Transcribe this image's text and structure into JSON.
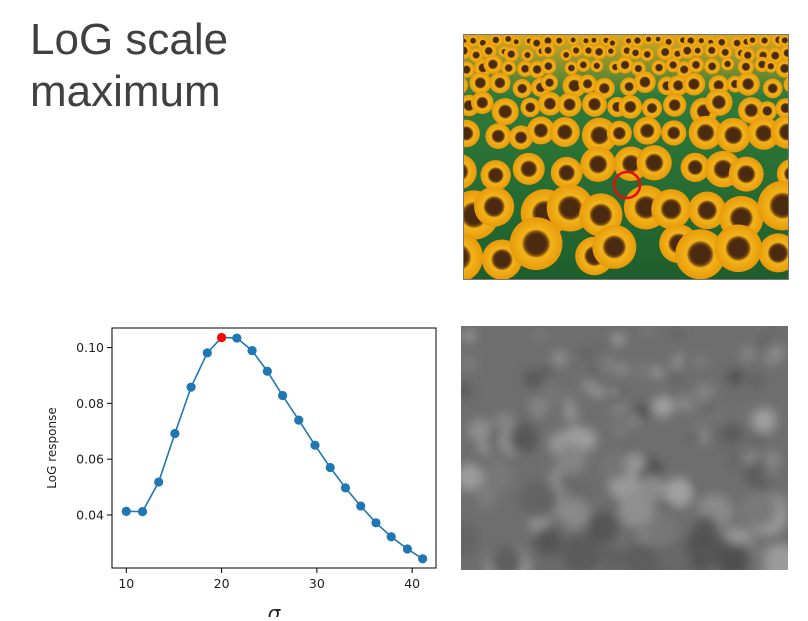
{
  "slide": {
    "title_line1": "LoG scale",
    "title_line2": "maximum"
  },
  "images": {
    "sunflowers": "sunflower-field-photo",
    "log_response_map": "blurred-log-response-image"
  },
  "colors": {
    "series": "#1f77b4",
    "point": "#1f77b4",
    "highlight": "#ff0000",
    "title_text": "#404040"
  },
  "chart_data": {
    "type": "line",
    "title": "",
    "xlabel": "σ",
    "ylabel": "LoG response",
    "xlim": [
      8.5,
      42.5
    ],
    "ylim": [
      0.021,
      0.107
    ],
    "x_ticks": [
      10,
      20,
      30,
      40
    ],
    "y_ticks": [
      0.04,
      0.06,
      0.08,
      0.1
    ],
    "x_tick_labels": [
      "10",
      "20",
      "30",
      "40"
    ],
    "y_tick_labels": [
      "0.04",
      "0.06",
      "0.08",
      "0.10"
    ],
    "grid": false,
    "series": [
      {
        "x": [
          10.0,
          11.7,
          13.4,
          15.1,
          16.8,
          18.5,
          20.0,
          21.6,
          23.2,
          24.8,
          26.4,
          28.1,
          29.8,
          31.4,
          33.0,
          34.6,
          36.2,
          37.8,
          39.5,
          41.1
        ],
        "values": [
          0.0413,
          0.0412,
          0.0518,
          0.0692,
          0.0858,
          0.0981,
          0.1036,
          0.1034,
          0.0989,
          0.0915,
          0.0828,
          0.074,
          0.065,
          0.057,
          0.0497,
          0.0432,
          0.0372,
          0.0322,
          0.0278,
          0.0243
        ]
      }
    ],
    "max_point": {
      "x": 20.0,
      "y": 0.1036
    }
  }
}
